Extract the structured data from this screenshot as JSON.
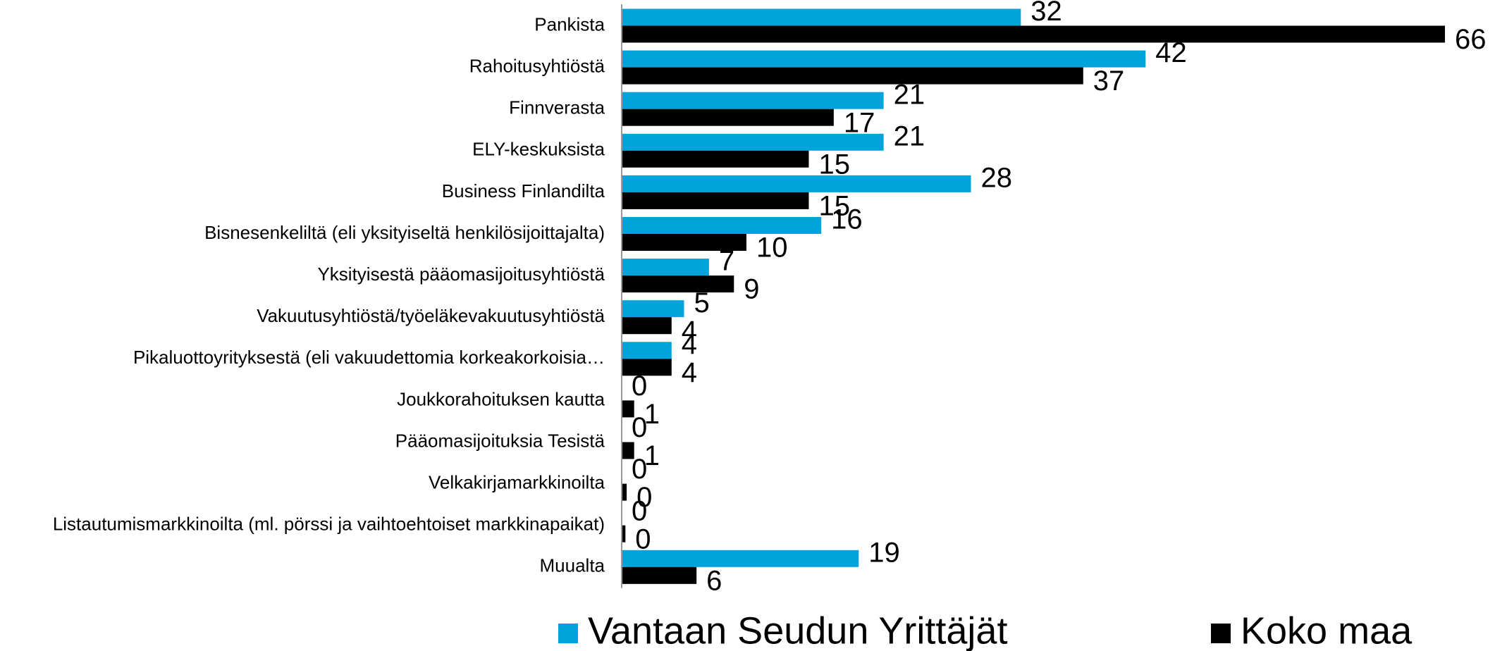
{
  "chart_data": {
    "type": "hbar",
    "categories": [
      "Pankista",
      "Rahoitusyhtiöstä",
      "Finnverasta",
      "ELY-keskuksista",
      "Business Finlandilta",
      "Bisnesenkeliltä (eli yksityiseltä henkilösijoittajalta)",
      "Yksityisestä pääomasijoitusyhtiöstä",
      "Vakuutusyhtiöstä/työeläkevakuutusyhtiöstä",
      "Pikaluottoyrityksestä (eli vakuudettomia korkeakorkoisia…",
      "Joukkorahoituksen kautta",
      "Pääomasijoituksia Tesistä",
      "Velkakirjamarkkinoilta",
      "Listautumismarkkinoilta (ml. pörssi ja vaihtoehtoiset markkinapaikat)",
      "Muualta"
    ],
    "series": [
      {
        "name": "Vantaan Seudun Yrittäjät",
        "color": "#00a3da",
        "values": [
          32,
          42,
          21,
          21,
          28,
          16,
          7,
          5,
          4,
          0,
          0,
          0,
          0,
          19
        ]
      },
      {
        "name": "Koko maa",
        "color": "#000000",
        "values": [
          66,
          37,
          17,
          15,
          15,
          10,
          9,
          4,
          4,
          1,
          1,
          0.4,
          0.3,
          6
        ],
        "value_labels": [
          "66",
          "37",
          "17",
          "15",
          "15",
          "10",
          "9",
          "4",
          "4",
          "1",
          "1",
          "0",
          "0",
          "6"
        ]
      }
    ],
    "legend": "bottom"
  }
}
